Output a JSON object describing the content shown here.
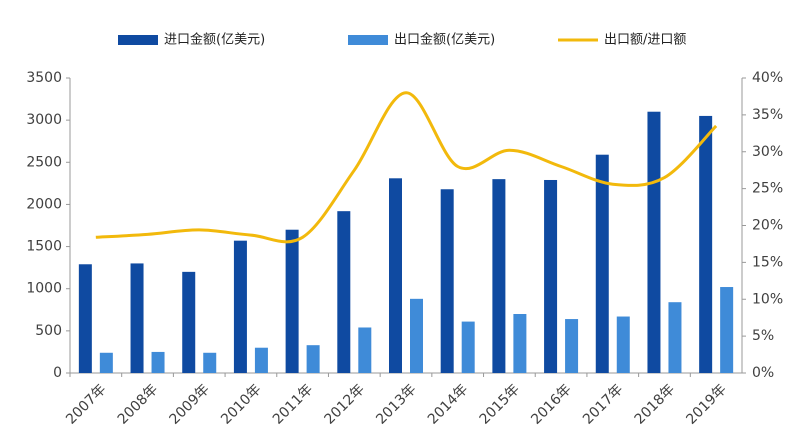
{
  "chart_data": {
    "type": "bar",
    "categories": [
      "2007年",
      "2008年",
      "2009年",
      "2010年",
      "2011年",
      "2012年",
      "2013年",
      "2014年",
      "2015年",
      "2016年",
      "2017年",
      "2018年",
      "2019年"
    ],
    "series": [
      {
        "name": "进口金额(亿美元)",
        "color": "#0f4aa1",
        "type": "bar",
        "values": [
          1290,
          1300,
          1200,
          1570,
          1700,
          1920,
          2310,
          2180,
          2300,
          2290,
          2590,
          3100,
          3050
        ]
      },
      {
        "name": "出口金额(亿美元)",
        "color": "#3f8bd8",
        "type": "bar",
        "values": [
          240,
          250,
          240,
          300,
          330,
          540,
          880,
          610,
          700,
          640,
          670,
          840,
          1020
        ]
      },
      {
        "name": "出口额/进口额",
        "color": "#f2b90c",
        "type": "line",
        "axis": "y2",
        "values": [
          18.4,
          18.8,
          19.4,
          18.7,
          18.4,
          27.5,
          38,
          28,
          30.2,
          28,
          25.6,
          26.5,
          33.5
        ]
      }
    ],
    "ylim": [
      0,
      3500
    ],
    "yticks": [
      0,
      500,
      1000,
      1500,
      2000,
      2500,
      3000,
      3500
    ],
    "y2lim": [
      0,
      40
    ],
    "y2ticks": [
      {
        "value": 0,
        "label": "0%"
      },
      {
        "value": 5,
        "label": "5%"
      },
      {
        "value": 10,
        "label": "10%"
      },
      {
        "value": 15,
        "label": "15%"
      },
      {
        "value": 20,
        "label": "20%"
      },
      {
        "value": 25,
        "label": "25%"
      },
      {
        "value": 30,
        "label": "30%"
      },
      {
        "value": 35,
        "label": "35%"
      },
      {
        "value": 40,
        "label": "40%"
      }
    ],
    "legend": "top"
  }
}
